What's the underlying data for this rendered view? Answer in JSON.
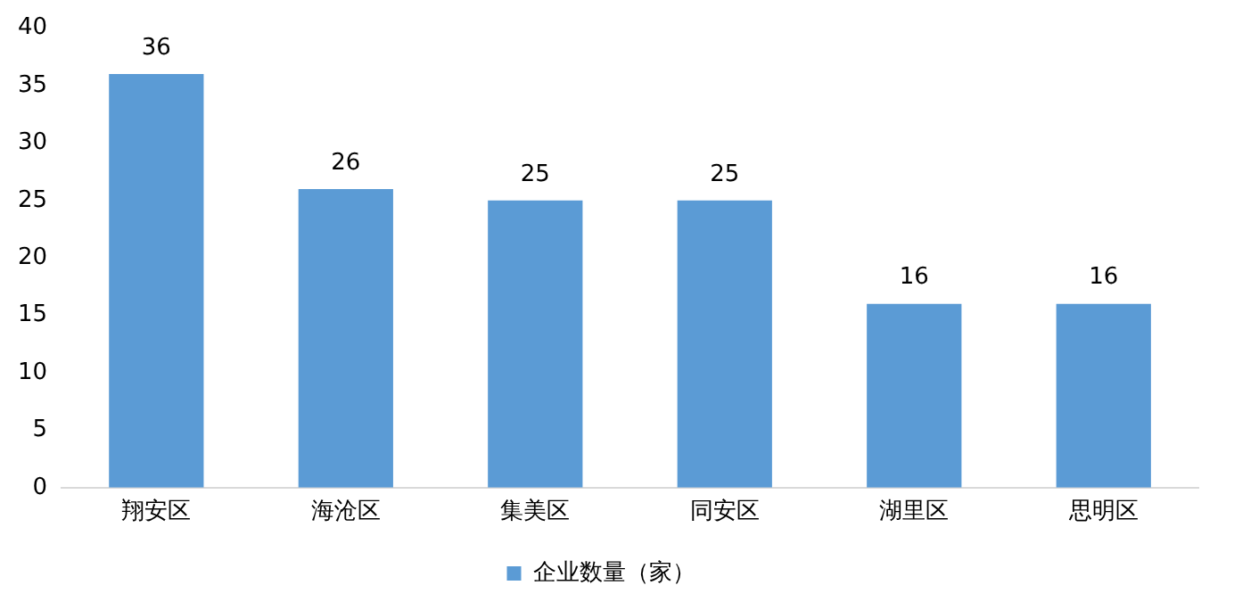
{
  "chart_data": {
    "type": "bar",
    "categories": [
      "翔安区",
      "海沧区",
      "集美区",
      "同安区",
      "湖里区",
      "思明区"
    ],
    "series": [
      {
        "name": "企业数量（家）",
        "color": "#5b9bd5",
        "values": [
          36,
          26,
          25,
          25,
          16,
          16
        ]
      }
    ],
    "ylim": [
      0,
      40
    ],
    "yticks": [
      0,
      5,
      10,
      15,
      20,
      25,
      30,
      35,
      40
    ],
    "grid": false,
    "legend": "bottom",
    "data_labels": true
  }
}
